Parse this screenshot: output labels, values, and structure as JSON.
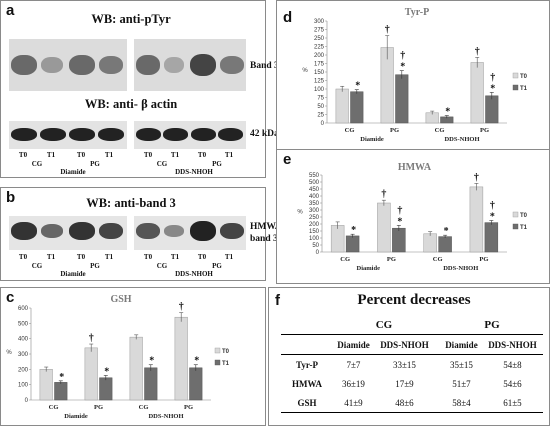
{
  "panels": {
    "a": {
      "letter": "a",
      "title1": "WB: anti-pTyr",
      "title2": "WB: anti- β actin",
      "band_label": "Band 3",
      "kda_label": "42 kDa",
      "lanes": [
        "T0",
        "T1",
        "T0",
        "T1",
        "T0",
        "T1",
        "T0",
        "T1"
      ],
      "groups": [
        "CG",
        "PG",
        "CG",
        "PG"
      ],
      "treatments": [
        "Diamide",
        "DDS-NHOH"
      ]
    },
    "b": {
      "letter": "b",
      "title": "WB: anti-band 3",
      "label1": "HMWA",
      "label2": "band 3",
      "lanes": [
        "T0",
        "T1",
        "T0",
        "T1",
        "T0",
        "T1",
        "T0",
        "T1"
      ],
      "groups": [
        "CG",
        "PG",
        "CG",
        "PG"
      ],
      "treatments": [
        "Diamide",
        "DDS-NHOH"
      ]
    },
    "f": {
      "letter": "f",
      "title": "Percent decreases",
      "header_groups": [
        "CG",
        "PG"
      ],
      "header_cols": [
        "Diamide",
        "DDS-NHOH",
        "Diamide",
        "DDS-NHOH"
      ],
      "rows": [
        {
          "label": "Tyr-P",
          "values": [
            "7±7",
            "33±15",
            "35±15",
            "54±8"
          ]
        },
        {
          "label": "HMWA",
          "values": [
            "36±19",
            "17±9",
            "51±7",
            "54±6"
          ]
        },
        {
          "label": "GSH",
          "values": [
            "41±9",
            "48±6",
            "58±4",
            "61±5"
          ]
        }
      ]
    }
  },
  "chart_data": [
    {
      "id": "c",
      "letter": "c",
      "type": "bar",
      "title": "GSH",
      "ylabel": "%",
      "ylim": [
        0,
        600
      ],
      "yticks": [
        0,
        100,
        200,
        300,
        400,
        500,
        600
      ],
      "categories": [
        "CG",
        "PG",
        "CG",
        "PG"
      ],
      "groups": [
        "Diamide",
        "DDS-NHOH"
      ],
      "series": [
        {
          "name": "T0",
          "values": [
            200,
            340,
            410,
            540
          ],
          "errors": [
            15,
            25,
            15,
            30
          ]
        },
        {
          "name": "T1",
          "values": [
            115,
            145,
            210,
            210
          ],
          "errors": [
            10,
            15,
            20,
            20
          ]
        }
      ],
      "dagger_on_T0": [
        false,
        true,
        false,
        true
      ],
      "star_on_T1": [
        true,
        true,
        true,
        true
      ],
      "dagger_on_T1": [
        false,
        false,
        false,
        false
      ],
      "legend": "right",
      "colors": {
        "T0": "#d9d9d9",
        "T1": "#6e6e6e"
      }
    },
    {
      "id": "d",
      "letter": "d",
      "type": "bar",
      "title": "Tyr-P",
      "ylabel": "%",
      "ylim": [
        0,
        300
      ],
      "yticks": [
        0,
        25,
        50,
        75,
        100,
        125,
        150,
        175,
        200,
        225,
        250,
        275,
        300
      ],
      "categories": [
        "CG",
        "PG",
        "CG",
        "PG"
      ],
      "groups": [
        "Diamide",
        "DDS-NHOH"
      ],
      "series": [
        {
          "name": "T0",
          "values": [
            100,
            222,
            30,
            178
          ],
          "errors": [
            8,
            35,
            5,
            15
          ]
        },
        {
          "name": "T1",
          "values": [
            92,
            142,
            18,
            80
          ],
          "errors": [
            6,
            12,
            4,
            10
          ]
        }
      ],
      "dagger_on_T0": [
        false,
        true,
        false,
        true
      ],
      "star_on_T1": [
        true,
        true,
        true,
        true
      ],
      "dagger_on_T1": [
        false,
        true,
        false,
        true
      ],
      "legend": "right",
      "colors": {
        "T0": "#d9d9d9",
        "T1": "#6e6e6e"
      }
    },
    {
      "id": "e",
      "letter": "e",
      "type": "bar",
      "title": "HMWA",
      "ylabel": "%",
      "ylim": [
        0,
        550
      ],
      "yticks": [
        0,
        50,
        100,
        150,
        200,
        250,
        300,
        350,
        400,
        450,
        500,
        550
      ],
      "categories": [
        "CG",
        "PG",
        "CG",
        "PG"
      ],
      "groups": [
        "Diamide",
        "DDS-NHOH"
      ],
      "series": [
        {
          "name": "T0",
          "values": [
            190,
            350,
            130,
            465
          ],
          "errors": [
            25,
            20,
            15,
            25
          ]
        },
        {
          "name": "T1",
          "values": [
            115,
            170,
            110,
            210
          ],
          "errors": [
            12,
            20,
            10,
            15
          ]
        }
      ],
      "dagger_on_T0": [
        false,
        true,
        false,
        true
      ],
      "star_on_T1": [
        true,
        true,
        true,
        true
      ],
      "dagger_on_T1": [
        false,
        true,
        false,
        true
      ],
      "legend": "right",
      "colors": {
        "T0": "#d9d9d9",
        "T1": "#6e6e6e"
      }
    }
  ]
}
